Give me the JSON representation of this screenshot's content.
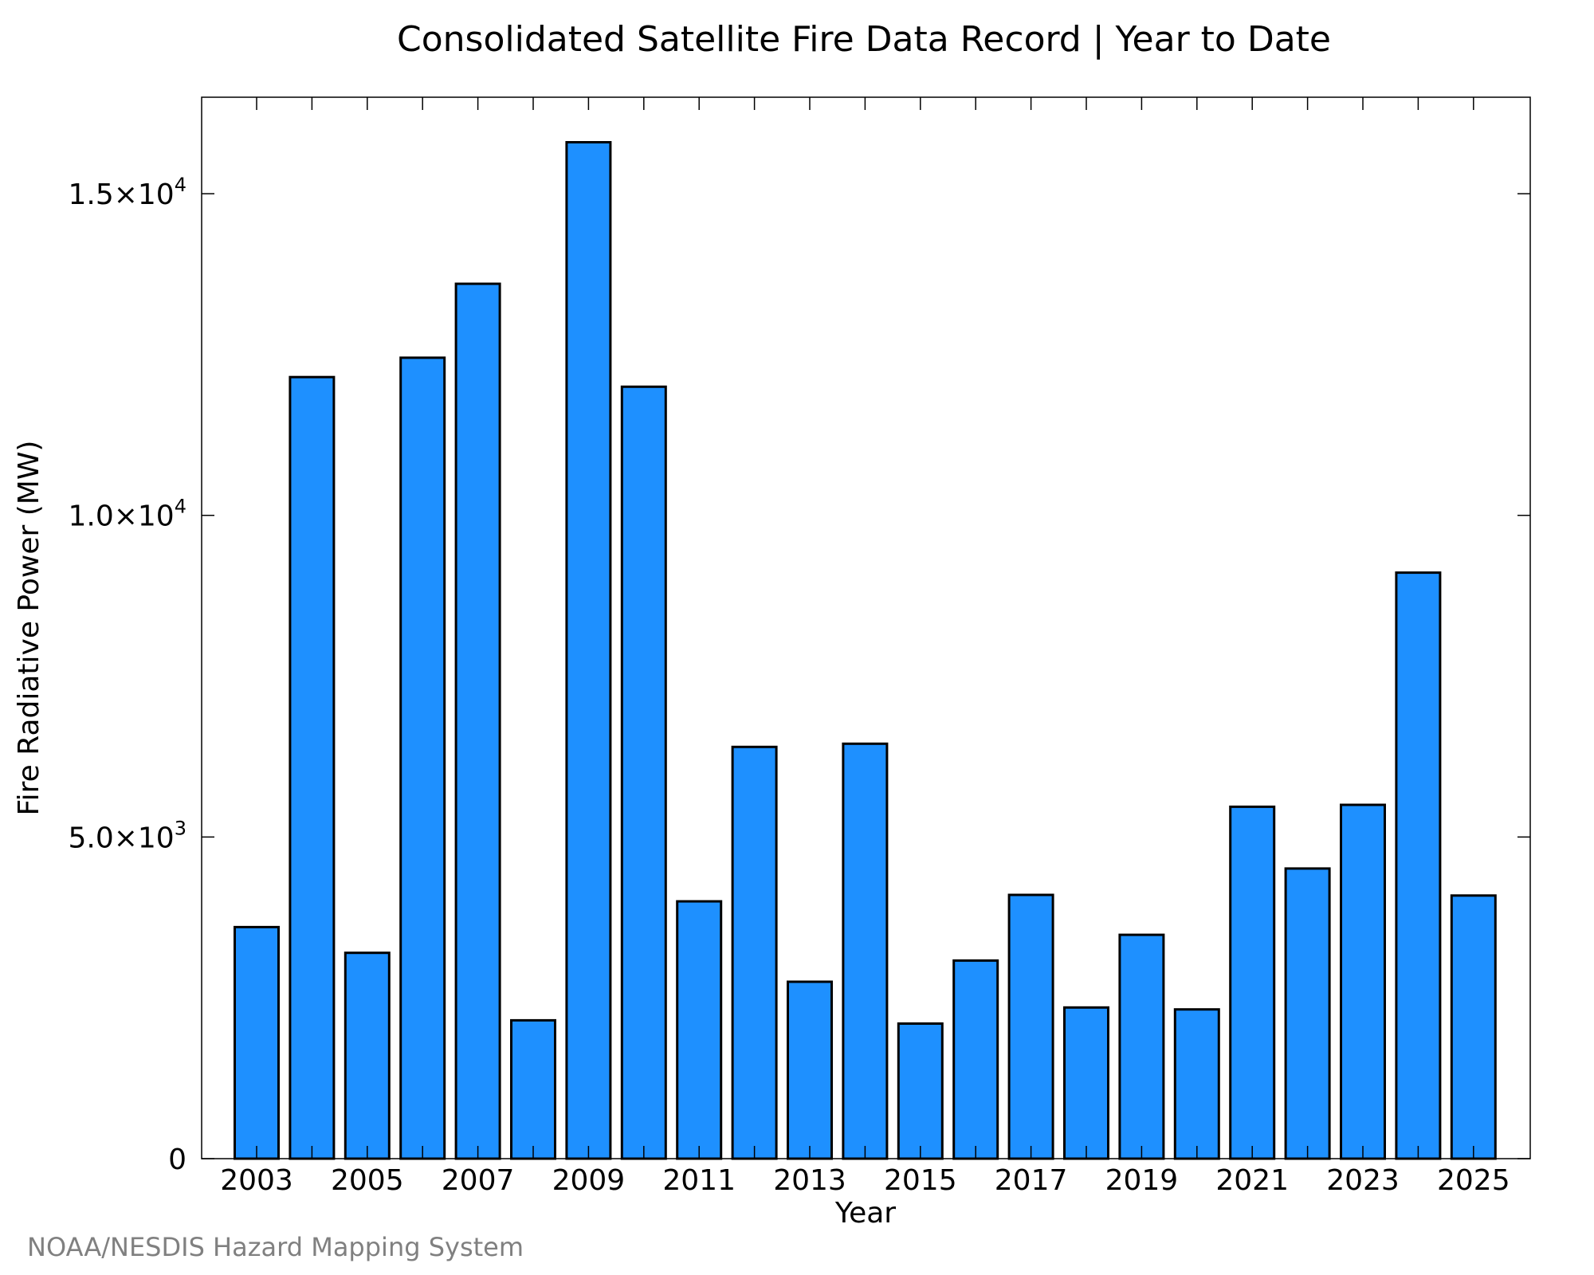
{
  "chart_data": {
    "type": "bar",
    "title": "Consolidated Satellite Fire Data Record | Year to Date",
    "xlabel": "Year",
    "ylabel": "Fire Radiative Power (MW)",
    "categories": [
      "2003",
      "2004",
      "2005",
      "2006",
      "2007",
      "2008",
      "2009",
      "2010",
      "2011",
      "2012",
      "2013",
      "2014",
      "2015",
      "2016",
      "2017",
      "2018",
      "2019",
      "2020",
      "2021",
      "2022",
      "2023",
      "2024",
      "2025"
    ],
    "values": [
      3600,
      12150,
      3200,
      12450,
      13600,
      2150,
      15800,
      12000,
      4000,
      6400,
      2750,
      6450,
      2100,
      3080,
      4100,
      2350,
      3480,
      2320,
      5470,
      4510,
      5500,
      9110,
      4090
    ],
    "ylim": [
      0,
      16500
    ],
    "yticks": [
      {
        "value": 0,
        "mantissa": "0",
        "exponent": ""
      },
      {
        "value": 5000,
        "mantissa": "5.0×10",
        "exponent": "3"
      },
      {
        "value": 10000,
        "mantissa": "1.0×10",
        "exponent": "4"
      },
      {
        "value": 15000,
        "mantissa": "1.5×10",
        "exponent": "4"
      }
    ],
    "xticks_labeled": [
      "2003",
      "2005",
      "2007",
      "2009",
      "2011",
      "2013",
      "2015",
      "2017",
      "2019",
      "2021",
      "2023",
      "2025"
    ],
    "bar_color": "#1e90ff",
    "edge_color": "#000000",
    "grid": false
  },
  "footer": {
    "source": "NOAA/NESDIS Hazard Mapping System",
    "source_color": "#808080"
  }
}
